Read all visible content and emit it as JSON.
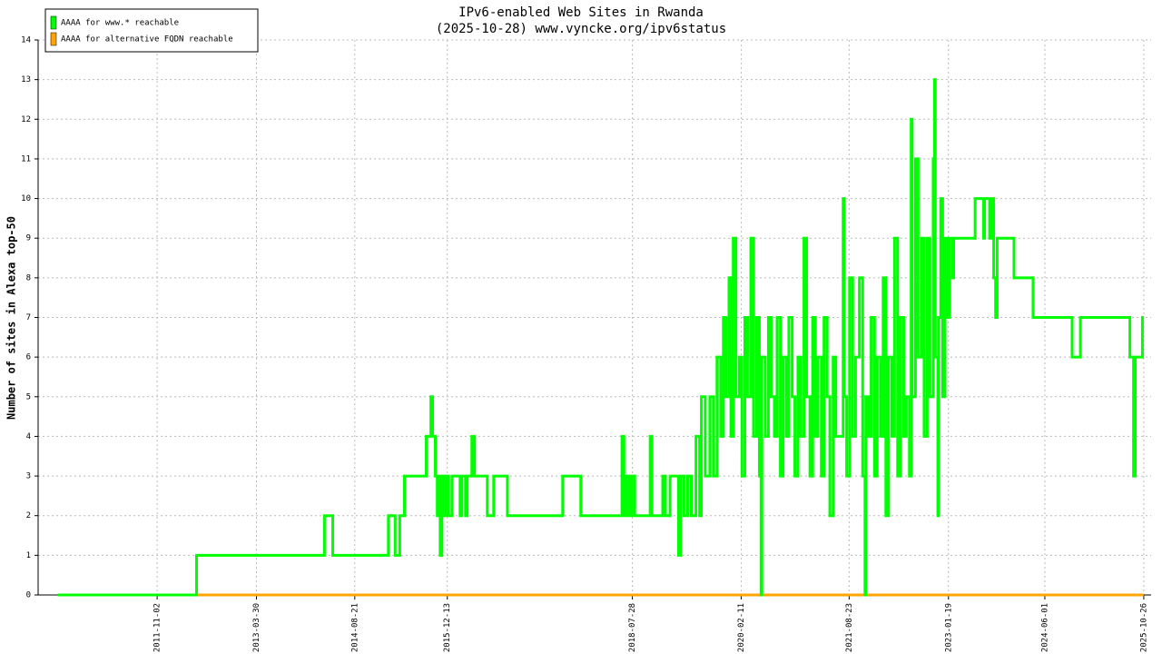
{
  "chart_data": {
    "type": "line",
    "step": true,
    "title": "IPv6-enabled Web Sites in Rwanda",
    "subtitle": "(2025-10-28) www.vyncke.org/ipv6status",
    "y_label": "Number of sites in Alexa top-50",
    "xlim": [
      "2010-02-24",
      "2025-12-03"
    ],
    "xticks": [
      "2011-11-02",
      "2013-03-30",
      "2014-08-21",
      "2015-12-13",
      "2018-07-28",
      "2020-02-11",
      "2021-08-23",
      "2023-01-19",
      "2024-06-01",
      "2025-10-26"
    ],
    "ylim": [
      0,
      14
    ],
    "yticks": [
      0,
      1,
      2,
      3,
      4,
      5,
      6,
      7,
      8,
      9,
      10,
      11,
      12,
      13,
      14
    ],
    "grid": true,
    "legend": "top-left",
    "series": [
      {
        "name": "AAAA for www.* reachable",
        "color": "#00ff00",
        "x": [
          "2010-06-05",
          "2012-05-24",
          "2014-03-17",
          "2014-04-29",
          "2015-02-11",
          "2015-03-18",
          "2015-04-11",
          "2015-05-05",
          "2015-08-26",
          "2015-09-19",
          "2015-09-28",
          "2015-10-12",
          "2015-10-22",
          "2015-11-01",
          "2015-11-06",
          "2015-11-15",
          "2015-11-24",
          "2015-12-04",
          "2015-12-18",
          "2016-01-06",
          "2016-02-17",
          "2016-02-27",
          "2016-03-16",
          "2016-03-25",
          "2016-04-18",
          "2016-05-02",
          "2016-07-07",
          "2016-08-09",
          "2016-10-19",
          "2017-08-01",
          "2017-11-03",
          "2018-06-04",
          "2018-06-14",
          "2018-06-27",
          "2018-07-11",
          "2018-07-25",
          "2018-08-09",
          "2018-10-28",
          "2018-11-06",
          "2019-01-01",
          "2019-01-15",
          "2019-02-08",
          "2019-03-24",
          "2019-04-03",
          "2019-04-21",
          "2019-05-10",
          "2019-05-29",
          "2019-06-22",
          "2019-07-11",
          "2019-07-20",
          "2019-08-09",
          "2019-09-02",
          "2019-09-20",
          "2019-10-09",
          "2019-10-28",
          "2019-11-11",
          "2019-11-25",
          "2019-12-10",
          "2019-12-20",
          "2020-01-01",
          "2020-01-15",
          "2020-02-01",
          "2020-02-15",
          "2020-03-01",
          "2020-03-15",
          "2020-04-01",
          "2020-04-15",
          "2020-05-01",
          "2020-05-15",
          "2020-05-24",
          "2020-05-28",
          "2020-06-15",
          "2020-07-01",
          "2020-07-15",
          "2020-08-01",
          "2020-08-15",
          "2020-09-01",
          "2020-09-15",
          "2020-10-01",
          "2020-10-15",
          "2020-11-01",
          "2020-11-15",
          "2020-12-01",
          "2020-12-15",
          "2021-01-01",
          "2021-01-15",
          "2021-02-01",
          "2021-02-15",
          "2021-03-01",
          "2021-03-15",
          "2021-04-01",
          "2021-04-15",
          "2021-05-01",
          "2021-05-15",
          "2021-06-01",
          "2021-06-15",
          "2021-07-23",
          "2021-07-28",
          "2021-08-10",
          "2021-08-25",
          "2021-09-10",
          "2021-09-25",
          "2021-10-15",
          "2021-11-01",
          "2021-11-13",
          "2021-11-17",
          "2021-12-01",
          "2021-12-15",
          "2022-01-01",
          "2022-01-15",
          "2022-02-01",
          "2022-02-15",
          "2022-03-01",
          "2022-03-15",
          "2022-04-01",
          "2022-04-15",
          "2022-05-01",
          "2022-05-15",
          "2022-06-01",
          "2022-06-15",
          "2022-07-01",
          "2022-07-10",
          "2022-07-15",
          "2022-08-01",
          "2022-08-15",
          "2022-09-01",
          "2022-09-15",
          "2022-10-01",
          "2022-10-15",
          "2022-11-01",
          "2022-11-08",
          "2022-11-12",
          "2022-11-25",
          "2022-11-28",
          "2022-12-10",
          "2022-12-20",
          "2023-01-01",
          "2023-01-15",
          "2023-01-25",
          "2023-02-10",
          "2023-02-15",
          "2023-06-06",
          "2023-07-20",
          "2023-07-25",
          "2023-08-20",
          "2023-09-01",
          "2023-09-10",
          "2023-09-20",
          "2023-09-28",
          "2023-12-24",
          "2024-04-01",
          "2024-10-20",
          "2024-12-02",
          "2025-08-15",
          "2025-09-03",
          "2025-09-12",
          "2025-10-19",
          "2025-10-26"
        ],
        "values": [
          0,
          1,
          2,
          1,
          2,
          1,
          2,
          3,
          4,
          5,
          4,
          3,
          2,
          3,
          1,
          3,
          2,
          3,
          2,
          3,
          2,
          3,
          2,
          3,
          4,
          3,
          2,
          3,
          2,
          3,
          2,
          4,
          2,
          3,
          2,
          3,
          2,
          4,
          2,
          3,
          2,
          3,
          1,
          3,
          2,
          3,
          2,
          4,
          2,
          5,
          3,
          5,
          3,
          6,
          4,
          7,
          5,
          8,
          4,
          9,
          5,
          6,
          3,
          7,
          5,
          9,
          4,
          7,
          3,
          0,
          6,
          4,
          7,
          5,
          4,
          7,
          3,
          6,
          4,
          7,
          5,
          3,
          6,
          4,
          9,
          5,
          3,
          7,
          4,
          6,
          3,
          7,
          5,
          2,
          6,
          4,
          10,
          5,
          3,
          8,
          4,
          6,
          8,
          3,
          0,
          5,
          4,
          7,
          3,
          6,
          4,
          8,
          2,
          6,
          4,
          9,
          3,
          7,
          4,
          5,
          3,
          12,
          5,
          11,
          6,
          9,
          4,
          9,
          5,
          11,
          13,
          6,
          2,
          7,
          10,
          5,
          9,
          7,
          9,
          8,
          9,
          10,
          9,
          10,
          9,
          10,
          8,
          7,
          9,
          8,
          7,
          6,
          7,
          6,
          3,
          6,
          7,
          7
        ]
      },
      {
        "name": "AAAA for alternative FQDN reachable",
        "color": "#ffa500",
        "x": [
          "2010-06-05",
          "2025-10-26"
        ],
        "values": [
          0,
          0
        ]
      }
    ]
  }
}
